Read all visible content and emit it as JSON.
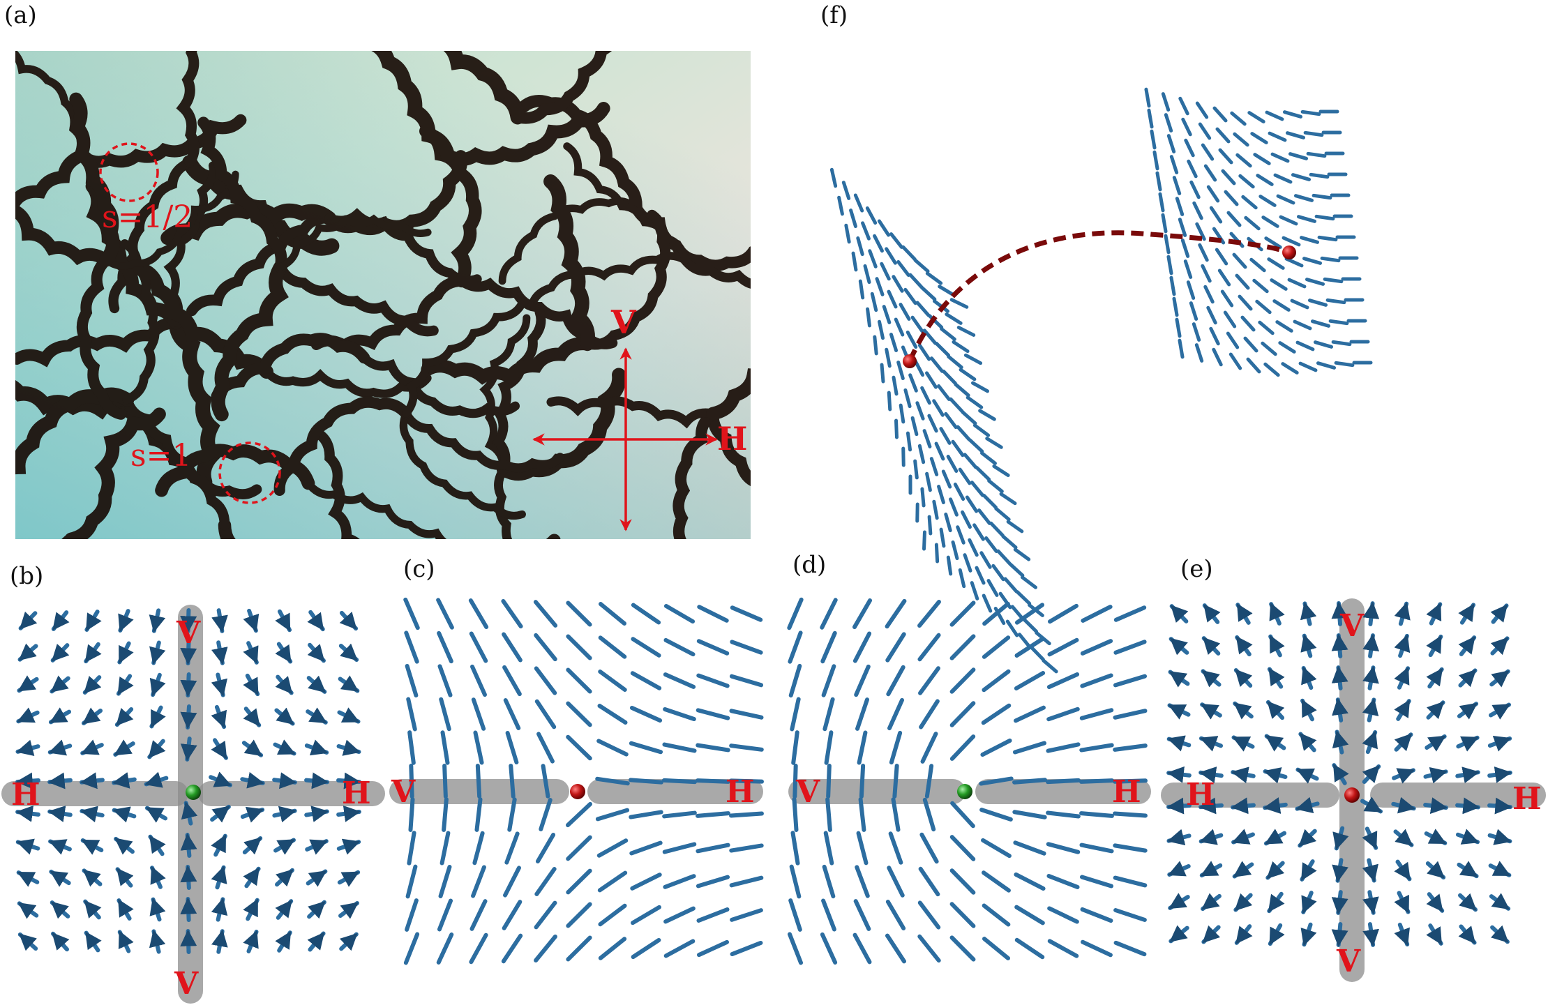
{
  "panels": {
    "a": {
      "label": "(a)"
    },
    "b": {
      "label": "(b)"
    },
    "c": {
      "label": "(c)"
    },
    "d": {
      "label": "(d)"
    },
    "e": {
      "label": "(e)"
    },
    "f": {
      "label": "(f)"
    }
  },
  "photo": {
    "defect_half": "s=1/2",
    "defect_one": "s=1",
    "polarizer_v": "V",
    "polarizer_h": "H"
  },
  "axis_labels": {
    "v": "V",
    "h": "H"
  },
  "colors": {
    "director": "#2c6da0",
    "director_dark": "#1b4a72",
    "label_red": "#e0141b",
    "band_gray": "#8c8c8c",
    "defect_red": "#b01010",
    "defect_green": "#1a8a1a",
    "path_dark_red": "#7a0a0a"
  }
}
